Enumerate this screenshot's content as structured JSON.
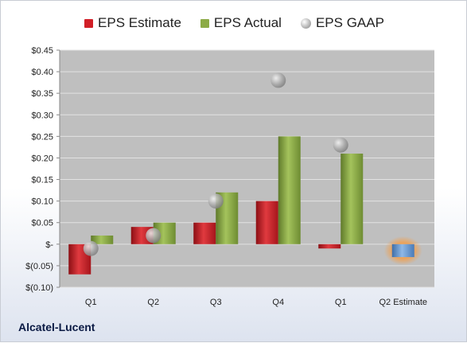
{
  "company": "Alcatel-Lucent",
  "colors": {
    "eps_estimate": "#d11f27",
    "eps_actual": "#8cab46",
    "eps_gaap": "#a6a6a6",
    "estimate_future": "#6b9bd1",
    "estimate_glow": "#f0a050",
    "plot_bg": "#bfbfbf"
  },
  "chart_data": {
    "type": "bar",
    "categories": [
      "Q1",
      "Q2",
      "Q3",
      "Q4",
      "Q1",
      "Q2 Estimate"
    ],
    "series": [
      {
        "name": "EPS Estimate",
        "type": "bar",
        "values": [
          -0.07,
          0.04,
          0.05,
          0.1,
          -0.01,
          null
        ]
      },
      {
        "name": "EPS Actual",
        "type": "bar",
        "values": [
          0.02,
          0.05,
          0.12,
          0.25,
          0.21,
          null
        ]
      },
      {
        "name": "EPS GAAP",
        "type": "scatter",
        "values": [
          -0.01,
          0.02,
          0.1,
          0.38,
          0.23,
          null
        ]
      }
    ],
    "future_estimate": {
      "category": "Q2 Estimate",
      "value": -0.03
    },
    "y_ticks": [
      -0.1,
      -0.05,
      0,
      0.05,
      0.1,
      0.15,
      0.2,
      0.25,
      0.3,
      0.35,
      0.4,
      0.45
    ],
    "y_tick_labels": [
      "$(0.10)",
      "$(0.05)",
      "$-",
      "$0.05",
      "$0.10",
      "$0.15",
      "$0.20",
      "$0.25",
      "$0.30",
      "$0.35",
      "$0.40",
      "$0.45"
    ],
    "ylim": [
      -0.1,
      0.45
    ],
    "grid": true,
    "legend_position": "top"
  }
}
